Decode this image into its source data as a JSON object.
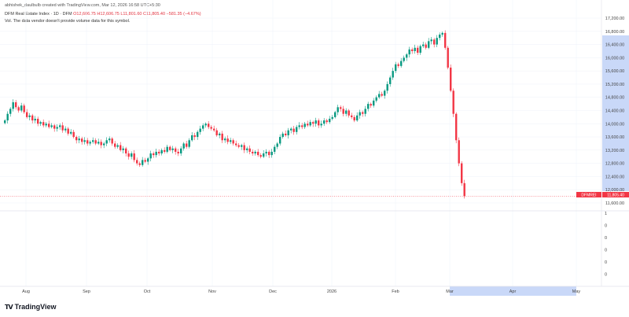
{
  "credit": "abhishek_daulbulb created with TradingView.com, Mar 12, 2026 16:58 UTC+5:30",
  "legend": {
    "symbol": "DFM Real Estate Index · 1D · DFM",
    "ohlc": "O12,606.75 H12,606.75 L11,801.60 C11,805.40 −581.35 (−4.67%)"
  },
  "volume_note": "Vol. The data vendor doesn't provide volume data for this symbol.",
  "brand": "TradingView",
  "price_tag": {
    "symbol": "DFMREI",
    "value": "11,805.40"
  },
  "colors": {
    "up": "#089981",
    "down": "#f23645",
    "highlight": "#c9d8f8"
  },
  "chart_data": {
    "type": "candlestick",
    "title": "DFM Real Estate Index · 1D · DFM",
    "ylim": [
      11600,
      17200
    ],
    "y_ticks": [
      "17,200.00",
      "16,800.00",
      "16,400.00",
      "16,000.00",
      "15,600.00",
      "15,200.00",
      "14,800.00",
      "14,400.00",
      "14,000.00",
      "13,600.00",
      "13,200.00",
      "12,800.00",
      "12,400.00",
      "12,000.00",
      "11,600.00"
    ],
    "y_tick_values": [
      17200,
      16800,
      16400,
      16000,
      15600,
      15200,
      14800,
      14400,
      14000,
      13600,
      13200,
      12800,
      12400,
      12000,
      11600
    ],
    "x_ticks": [
      "Aug",
      "Sep",
      "Oct",
      "Nov",
      "Dec",
      "2026",
      "Feb",
      "Mar",
      "Apr",
      "May"
    ],
    "volume_pane_ticks": [
      "1",
      "0",
      "0",
      "0",
      "0",
      "0"
    ],
    "grid": true,
    "closes": [
      14100,
      14300,
      14450,
      14650,
      14500,
      14400,
      14550,
      14350,
      14200,
      14250,
      14100,
      14150,
      14000,
      14050,
      13950,
      14000,
      13900,
      13950,
      13850,
      13900,
      13950,
      13800,
      13850,
      13700,
      13750,
      13600,
      13500,
      13550,
      13450,
      13500,
      13400,
      13450,
      13500,
      13400,
      13450,
      13350,
      13400,
      13500,
      13550,
      13400,
      13300,
      13350,
      13200,
      13250,
      13100,
      13000,
      13100,
      12900,
      12800,
      12750,
      12900,
      12850,
      12950,
      13100,
      13050,
      13150,
      13100,
      13200,
      13150,
      13300,
      13200,
      13250,
      13150,
      13100,
      13250,
      13400,
      13300,
      13500,
      13650,
      13600,
      13750,
      13850,
      13950,
      14000,
      13900,
      13850,
      13800,
      13650,
      13700,
      13500,
      13550,
      13450,
      13500,
      13400,
      13350,
      13300,
      13350,
      13200,
      13250,
      13150,
      13100,
      13150,
      13050,
      13000,
      13100,
      13150,
      13050,
      13150,
      13300,
      13400,
      13600,
      13700,
      13650,
      13800,
      13850,
      13750,
      13900,
      13950,
      13900,
      14000,
      13950,
      14050,
      14000,
      14100,
      13950,
      14000,
      14100,
      14050,
      14150,
      14200,
      14350,
      14500,
      14450,
      14300,
      14400,
      14250,
      14200,
      14100,
      14250,
      14350,
      14300,
      14450,
      14600,
      14550,
      14700,
      14800,
      14900,
      14850,
      15000,
      15200,
      15400,
      15600,
      15800,
      15750,
      15900,
      16000,
      16100,
      16250,
      16200,
      16300,
      16150,
      16350,
      16400,
      16300,
      16500,
      16550,
      16400,
      16600,
      16700,
      16750,
      16300,
      15700,
      15000,
      14300,
      13500,
      12800,
      12200,
      11805.4
    ],
    "last_price": 11805.4
  }
}
